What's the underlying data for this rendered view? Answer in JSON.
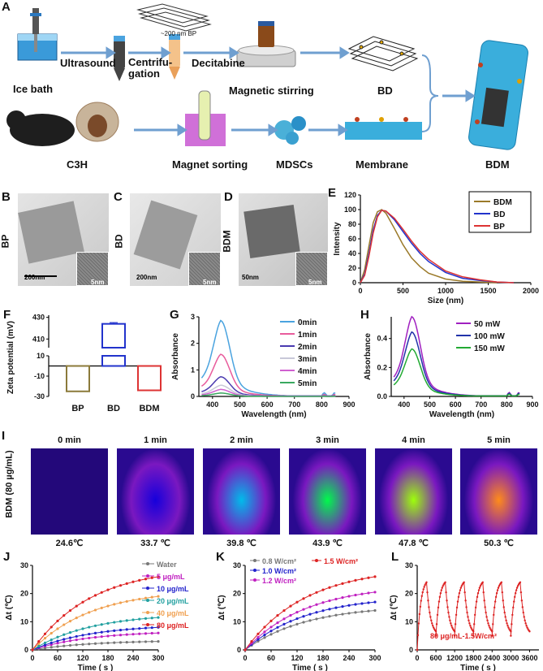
{
  "panel_a": {
    "letter": "A",
    "labels": {
      "ice_bath": "Ice bath",
      "ultrasound": "Ultrasound",
      "centrifugation": "Centrifu-\ngation",
      "decitabine": "Decitabine",
      "bp_size": "~200 nm BP",
      "magnetic_stirring": "Magnetic stirring",
      "bd": "BD",
      "bdm": "BDM",
      "c3h": "C3H",
      "magnet_sorting": "Magnet sorting",
      "mdscs": "MDSCs",
      "membrane": "Membrane"
    }
  },
  "panel_b": {
    "letter": "B",
    "side_label": "BP",
    "scale_main": "200nm",
    "scale_inset": "5nm"
  },
  "panel_c": {
    "letter": "C",
    "side_label": "BD",
    "scale_main": "200nm",
    "scale_inset": "5nm"
  },
  "panel_d": {
    "letter": "D",
    "side_label": "BDM",
    "scale_main": "50nm",
    "scale_inset": "5nm"
  },
  "panel_i": {
    "letter": "I",
    "side_label": "BDM (80 µg/mL)",
    "times": [
      "0 min",
      "1 min",
      "2 min",
      "3 min",
      "4 min",
      "5 min"
    ],
    "temps": [
      "24.6℃",
      "33.7 ℃",
      "39.8 ℃",
      "43.9 ℃",
      "47.8 ℃",
      "50.3 ℃"
    ]
  },
  "chart_data": [
    {
      "id": "E",
      "type": "line",
      "xlabel": "Size (nm)",
      "ylabel": "Intensity",
      "xlim": [
        0,
        2000
      ],
      "ylim": [
        0,
        120
      ],
      "xticks": [
        "0",
        "500",
        "1000",
        "1500",
        "2000"
      ],
      "yticks": [
        "0",
        "20",
        "40",
        "60",
        "80",
        "100",
        "120"
      ],
      "legend": [
        "BDM",
        "BD",
        "BP"
      ],
      "colors": [
        "#9b7a2a",
        "#2233cc",
        "#dd3333"
      ],
      "series": [
        {
          "name": "BDM",
          "x": [
            0,
            50,
            100,
            150,
            200,
            250,
            300,
            400,
            500,
            600,
            700,
            800,
            1000,
            1200,
            1400,
            1600
          ],
          "y": [
            0,
            18,
            50,
            82,
            97,
            100,
            95,
            74,
            52,
            34,
            22,
            13,
            5,
            2,
            1,
            0
          ]
        },
        {
          "name": "BD",
          "x": [
            0,
            50,
            100,
            150,
            200,
            250,
            300,
            400,
            500,
            600,
            700,
            800,
            1000,
            1200,
            1400,
            1600,
            1800
          ],
          "y": [
            0,
            12,
            40,
            72,
            92,
            99,
            98,
            86,
            70,
            54,
            40,
            29,
            14,
            6,
            3,
            1,
            0
          ]
        },
        {
          "name": "BP",
          "x": [
            0,
            50,
            100,
            150,
            200,
            250,
            300,
            400,
            500,
            600,
            700,
            800,
            1000,
            1200,
            1400,
            1600,
            1800
          ],
          "y": [
            0,
            10,
            36,
            68,
            90,
            99,
            98,
            88,
            73,
            57,
            43,
            32,
            16,
            8,
            4,
            1,
            0
          ]
        }
      ]
    },
    {
      "id": "F",
      "type": "bar",
      "ylabel": "Zeta potential (mV)",
      "categories": [
        "BP",
        "BD",
        "BDM"
      ],
      "values": [
        -25,
        424,
        -24
      ],
      "errors": [
        0.5,
        1.2,
        0.5
      ],
      "colors": [
        "#8b7a3a",
        "#2233cc",
        "#dd3333"
      ],
      "yticks_top": [
        "410",
        "430"
      ],
      "yticks_bottom": [
        "10",
        "-10",
        "-30"
      ]
    },
    {
      "id": "G",
      "type": "line",
      "xlabel": "Wavelength (nm)",
      "ylabel": "Absorbance",
      "xlim": [
        350,
        900
      ],
      "ylim": [
        0,
        3
      ],
      "xticks": [
        "400",
        "500",
        "600",
        "700",
        "800",
        "900"
      ],
      "yticks": [
        "0",
        "1",
        "2",
        "3"
      ],
      "legend": [
        "0min",
        "1min",
        "2min",
        "3min",
        "4min",
        "5min"
      ],
      "colors": [
        "#4aa3df",
        "#e85c9c",
        "#4a3ab0",
        "#c8c8d8",
        "#d060d0",
        "#3aa860"
      ],
      "series": [
        {
          "name": "0min",
          "peak": 2.7
        },
        {
          "name": "1min",
          "peak": 1.5
        },
        {
          "name": "2min",
          "peak": 0.7
        },
        {
          "name": "3min",
          "peak": 0.4
        },
        {
          "name": "4min",
          "peak": 0.25
        },
        {
          "name": "5min",
          "peak": 0.12
        }
      ]
    },
    {
      "id": "H",
      "type": "line",
      "xlabel": "Wavelength (nm)",
      "ylabel": "Absorbance",
      "xlim": [
        350,
        900
      ],
      "ylim": [
        0,
        0.55
      ],
      "xticks": [
        "400",
        "500",
        "600",
        "700",
        "800",
        "900"
      ],
      "yticks": [
        "0.0",
        "0.2",
        "0.4"
      ],
      "legend": [
        "50 mW",
        "100 mW",
        "150 mW"
      ],
      "colors": [
        "#a020c0",
        "#2233aa",
        "#22aa33"
      ],
      "series": [
        {
          "name": "50 mW",
          "peak": 0.52
        },
        {
          "name": "100 mW",
          "peak": 0.42
        },
        {
          "name": "150 mW",
          "peak": 0.31
        }
      ]
    },
    {
      "id": "J",
      "type": "line",
      "xlabel": "Time ( s )",
      "ylabel": "Δt (℃)",
      "xlim": [
        0,
        300
      ],
      "ylim": [
        0,
        30
      ],
      "xticks": [
        "0",
        "60",
        "120",
        "180",
        "240",
        "300"
      ],
      "yticks": [
        "0",
        "10",
        "20",
        "30"
      ],
      "legend": [
        "Water",
        "5 μg/mL",
        "10 μg/mL",
        "20 μg/mL",
        "40 μg/mL",
        "80 μg/mL"
      ],
      "colors": [
        "#777777",
        "#c020c0",
        "#2222cc",
        "#22a0a0",
        "#f0a050",
        "#dd2222"
      ],
      "series": [
        {
          "name": "Water",
          "end": 3
        },
        {
          "name": "5 μg/mL",
          "end": 6
        },
        {
          "name": "10 μg/mL",
          "end": 8
        },
        {
          "name": "20 μg/mL",
          "end": 11.5
        },
        {
          "name": "40 μg/mL",
          "end": 19
        },
        {
          "name": "80 μg/mL",
          "end": 26
        }
      ]
    },
    {
      "id": "K",
      "type": "line",
      "xlabel": "Time ( s )",
      "ylabel": "Δt (℃)",
      "xlim": [
        0,
        300
      ],
      "ylim": [
        0,
        30
      ],
      "xticks": [
        "0",
        "60",
        "120",
        "180",
        "240",
        "300"
      ],
      "yticks": [
        "0",
        "10",
        "20",
        "30"
      ],
      "legend": [
        "0.8 W/cm²",
        "1.0 W/cm²",
        "1.2 W/cm²",
        "1.5 W/cm²"
      ],
      "colors": [
        "#777777",
        "#2222cc",
        "#c020c0",
        "#dd2222"
      ],
      "series": [
        {
          "name": "0.8 W/cm²",
          "end": 14
        },
        {
          "name": "1.0 W/cm²",
          "end": 17
        },
        {
          "name": "1.2 W/cm²",
          "end": 20.5
        },
        {
          "name": "1.5 W/cm²",
          "end": 26
        }
      ]
    },
    {
      "id": "L",
      "type": "line",
      "xlabel": "Time ( s )",
      "ylabel": "Δt (℃)",
      "xlim": [
        0,
        3900
      ],
      "ylim": [
        0,
        30
      ],
      "xticks": [
        "0",
        "600",
        "1200",
        "1800",
        "2400",
        "3000",
        "3600"
      ],
      "yticks": [
        "0",
        "10",
        "20",
        "30"
      ],
      "annotation": "80 μg/mL-1.5W/cm²",
      "colors": [
        "#dd2222"
      ],
      "cycles": 6,
      "peak": 24,
      "trough": 5
    }
  ]
}
